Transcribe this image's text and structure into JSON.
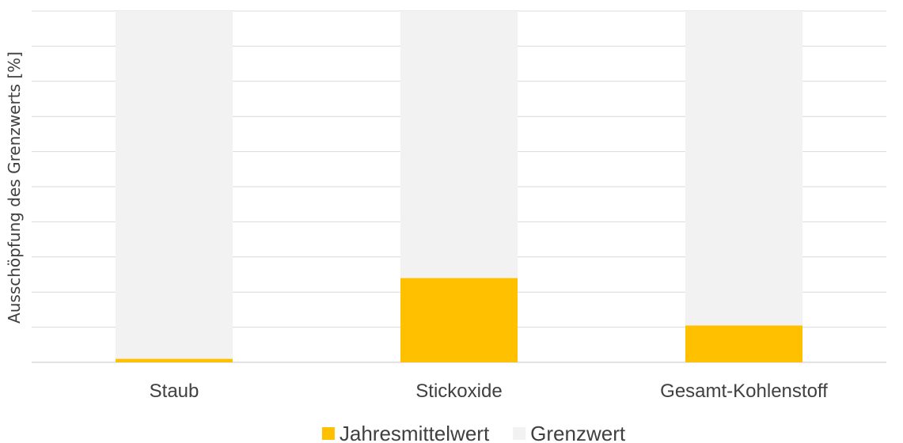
{
  "chart_data": {
    "type": "bar",
    "stacked": true,
    "ylabel": "Ausschöpfung des Grenzwerts [%]",
    "ylim": [
      0,
      100
    ],
    "grid": true,
    "y_tick_labels_shown": false,
    "legend_position": "bottom",
    "categories": [
      "Staub",
      "Stickoxide",
      "Gesamt-Kohlenstoff"
    ],
    "series": [
      {
        "name": "Jahresmittelwert",
        "values": [
          1,
          24,
          10.5
        ]
      },
      {
        "name": "Grenzwert",
        "values": [
          99,
          76,
          89.5
        ]
      }
    ],
    "colors": {
      "Jahresmittelwert": "#FFC000",
      "Grenzwert": "#F2F2F2",
      "grid": "#D9D9D9"
    }
  }
}
